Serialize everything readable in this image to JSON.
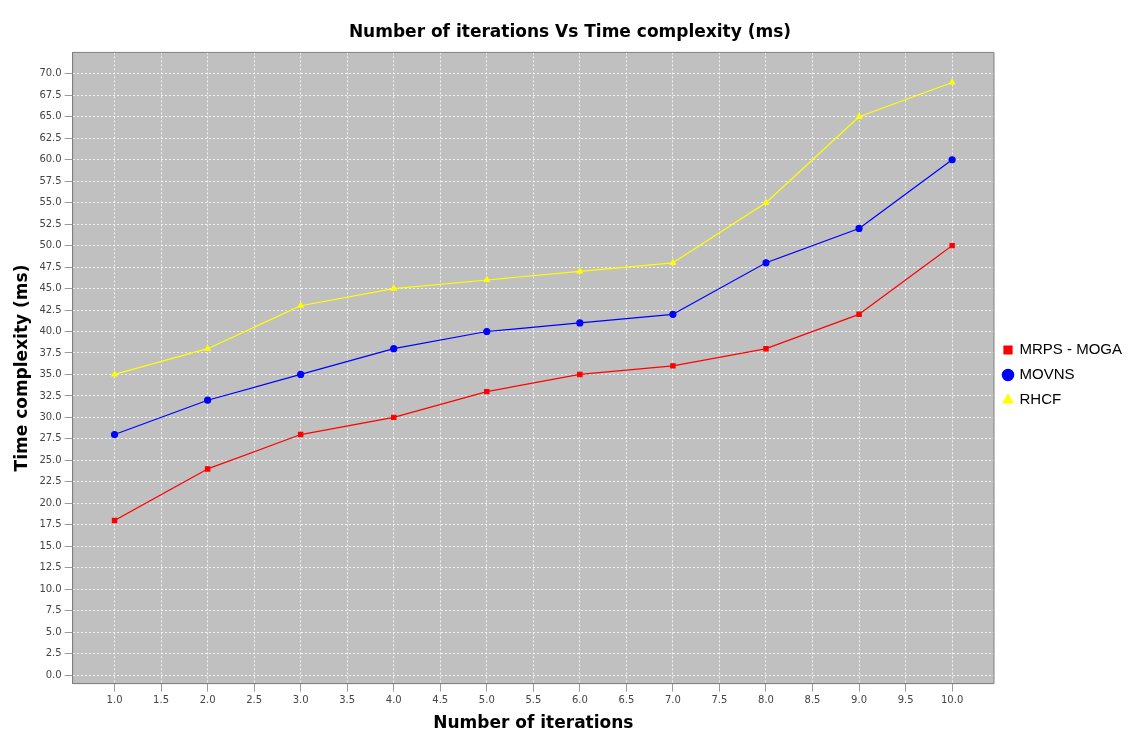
{
  "chart_data": {
    "type": "line",
    "title": "Number of iterations Vs Time complexity (ms)",
    "xlabel": "Number of iterations",
    "ylabel": "Time complexity (ms)",
    "x": [
      1,
      2,
      3,
      4,
      5,
      6,
      7,
      8,
      9,
      10
    ],
    "series": [
      {
        "name": "MRPS - MOGA",
        "color": "#ff0000",
        "marker": "square",
        "values": [
          18,
          24,
          28,
          30,
          33,
          35,
          36,
          38,
          42,
          50
        ]
      },
      {
        "name": "MOVNS",
        "color": "#0000ff",
        "marker": "circle",
        "values": [
          28,
          32,
          35,
          38,
          40,
          41,
          42,
          48,
          52,
          60
        ]
      },
      {
        "name": "RHCF",
        "color": "#ffff00",
        "marker": "triangle",
        "values": [
          35,
          38,
          43,
          45,
          46,
          47,
          48,
          55,
          65,
          69
        ]
      }
    ],
    "xlim": [
      0.55,
      10.45
    ],
    "xticks": [
      {
        "value": 1,
        "label": "1.0"
      },
      {
        "value": 1.5,
        "label": "1.5"
      },
      {
        "value": 2,
        "label": "2.0"
      },
      {
        "value": 2.5,
        "label": "2.5"
      },
      {
        "value": 3,
        "label": "3.0"
      },
      {
        "value": 3.5,
        "label": "3.5"
      },
      {
        "value": 4,
        "label": "4.0"
      },
      {
        "value": 4.5,
        "label": "4.5"
      },
      {
        "value": 5,
        "label": "5.0"
      },
      {
        "value": 5.5,
        "label": "5.5"
      },
      {
        "value": 6,
        "label": "6.0"
      },
      {
        "value": 6.5,
        "label": "6.5"
      },
      {
        "value": 7,
        "label": "7.0"
      },
      {
        "value": 7.5,
        "label": "7.5"
      },
      {
        "value": 8,
        "label": "8.0"
      },
      {
        "value": 8.5,
        "label": "8.5"
      },
      {
        "value": 9,
        "label": "9.0"
      },
      {
        "value": 9.5,
        "label": "9.5"
      },
      {
        "value": 10,
        "label": "10.0"
      }
    ],
    "ylim": [
      -1,
      72.5
    ],
    "yticks": [
      {
        "value": 0,
        "label": "0.0"
      },
      {
        "value": 2.5,
        "label": "2.5"
      },
      {
        "value": 5,
        "label": "5.0"
      },
      {
        "value": 7.5,
        "label": "7.5"
      },
      {
        "value": 10,
        "label": "10.0"
      },
      {
        "value": 12.5,
        "label": "12.5"
      },
      {
        "value": 15,
        "label": "15.0"
      },
      {
        "value": 17.5,
        "label": "17.5"
      },
      {
        "value": 20,
        "label": "20.0"
      },
      {
        "value": 22.5,
        "label": "22.5"
      },
      {
        "value": 25,
        "label": "25.0"
      },
      {
        "value": 27.5,
        "label": "27.5"
      },
      {
        "value": 30,
        "label": "30.0"
      },
      {
        "value": 32.5,
        "label": "32.5"
      },
      {
        "value": 35,
        "label": "35.0"
      },
      {
        "value": 37.5,
        "label": "37.5"
      },
      {
        "value": 40,
        "label": "40.0"
      },
      {
        "value": 42.5,
        "label": "42.5"
      },
      {
        "value": 45,
        "label": "45.0"
      },
      {
        "value": 47.5,
        "label": "47.5"
      },
      {
        "value": 50,
        "label": "50.0"
      },
      {
        "value": 52.5,
        "label": "52.5"
      },
      {
        "value": 55,
        "label": "55.0"
      },
      {
        "value": 57.5,
        "label": "57.5"
      },
      {
        "value": 60,
        "label": "60.0"
      },
      {
        "value": 62.5,
        "label": "62.5"
      },
      {
        "value": 65,
        "label": "65.0"
      },
      {
        "value": 67.5,
        "label": "67.5"
      },
      {
        "value": 70,
        "label": "70.0"
      }
    ],
    "grid": true,
    "legend": "right",
    "line_style": "solid"
  }
}
